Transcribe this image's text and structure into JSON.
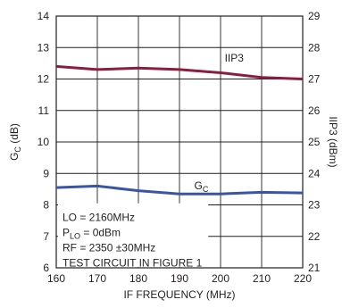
{
  "chart_data": {
    "type": "line",
    "xlabel": "IF FREQUENCY (MHz)",
    "ylabel_left": "G_C (dB)",
    "ylabel_right": "IIP3 (dBm)",
    "xlim": [
      160,
      220
    ],
    "ylim_left": [
      6,
      14
    ],
    "ylim_right": [
      21,
      29
    ],
    "x_ticks": [
      "160",
      "170",
      "180",
      "190",
      "200",
      "210",
      "220"
    ],
    "y_ticks_left": [
      "6",
      "7",
      "8",
      "9",
      "10",
      "11",
      "12",
      "13",
      "14"
    ],
    "y_ticks_right": [
      "21",
      "22",
      "23",
      "24",
      "25",
      "26",
      "27",
      "28",
      "29"
    ],
    "grid": true,
    "x": [
      160,
      170,
      180,
      190,
      200,
      210,
      220
    ],
    "series": [
      {
        "name": "IIP3",
        "axis": "right",
        "color": "#8c1d3f",
        "values": [
          27.4,
          27.3,
          27.35,
          27.3,
          27.2,
          27.05,
          27.0
        ]
      },
      {
        "name": "G_C",
        "axis": "left",
        "color": "#3a55a6",
        "values": [
          8.55,
          8.6,
          8.45,
          8.35,
          8.35,
          8.4,
          8.38
        ]
      }
    ],
    "annotation_lines": [
      "LO = 2160MHz",
      "P_LO = 0dBm",
      "RF = 2350 ±30MHz",
      "TEST CIRCUIT IN FIGURE 1"
    ]
  }
}
